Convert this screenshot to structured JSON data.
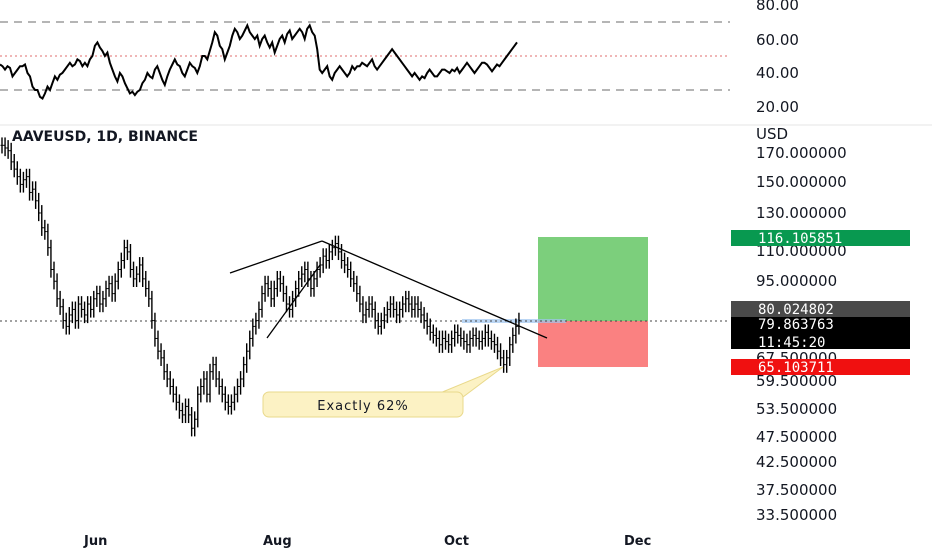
{
  "chart_data": [
    {
      "type": "line",
      "name": "rsi",
      "ylim": [
        20,
        80
      ],
      "y_ticks": [
        "80.00",
        "60.00",
        "40.00",
        "20.00"
      ],
      "band_levels": [
        30,
        50,
        70
      ],
      "values": [
        45,
        44,
        42,
        44,
        43,
        38,
        40,
        42,
        44,
        44,
        45,
        40,
        38,
        32,
        30,
        30,
        26,
        25,
        28,
        32,
        30,
        34,
        38,
        36,
        39,
        40,
        42,
        44,
        46,
        44,
        45,
        48,
        47,
        44,
        46,
        44,
        48,
        50,
        56,
        58,
        55,
        53,
        50,
        52,
        46,
        42,
        38,
        35,
        40,
        38,
        34,
        31,
        28,
        29,
        27,
        29,
        30,
        34,
        36,
        40,
        38,
        37,
        42,
        44,
        40,
        36,
        33,
        38,
        42,
        45,
        48,
        45,
        44,
        40,
        38,
        42,
        46,
        44,
        43,
        40,
        44,
        50,
        50,
        48,
        53,
        58,
        64,
        62,
        56,
        54,
        48,
        52,
        56,
        62,
        66,
        64,
        60,
        62,
        65,
        68,
        64,
        62,
        60,
        62,
        56,
        60,
        62,
        58,
        55,
        58,
        52,
        56,
        60,
        62,
        58,
        63,
        65,
        60,
        62,
        64,
        66,
        64,
        60,
        66,
        68,
        64,
        62,
        54,
        42,
        40,
        42,
        44,
        38,
        36,
        40,
        42,
        44,
        42,
        40,
        38,
        40,
        44,
        42,
        44,
        44,
        46,
        45,
        44,
        46,
        48,
        44,
        42,
        44,
        46,
        48,
        50,
        52,
        54,
        52,
        50,
        48,
        46,
        44,
        42,
        40,
        38,
        40,
        38,
        36,
        38,
        37,
        40,
        42,
        40,
        38,
        38,
        40,
        42,
        42,
        41,
        40,
        42,
        41,
        43,
        40,
        42,
        44,
        46,
        44,
        42,
        40,
        42,
        44,
        46,
        46,
        45,
        43,
        41,
        43,
        45,
        44,
        46,
        48,
        50,
        52,
        54,
        56,
        58
      ]
    },
    {
      "type": "bar",
      "name": "price",
      "title": "AAVEUSD, 1D, BINANCE",
      "unit": "USD",
      "y_ticks": [
        170,
        150,
        130,
        110,
        95,
        67.5,
        59.5,
        53.5,
        47.5,
        42.5,
        37.5,
        33.5
      ],
      "y_tick_labels": [
        "170.000000",
        "150.000000",
        "130.000000",
        "110.000000",
        "95.000000",
        "67.500000",
        "59.500000",
        "53.500000",
        "47.500000",
        "42.500000",
        "37.500000",
        "33.500000"
      ],
      "x_labels": [
        "Jun",
        "Aug",
        "Oct",
        "Dec"
      ],
      "close": [
        172,
        170,
        168,
        160,
        155,
        150,
        145,
        148,
        150,
        140,
        142,
        135,
        128,
        120,
        118,
        110,
        100,
        95,
        88,
        85,
        80,
        78,
        82,
        84,
        80,
        86,
        84,
        82,
        86,
        84,
        88,
        90,
        86,
        88,
        92,
        94,
        90,
        95,
        100,
        104,
        110,
        108,
        100,
        96,
        98,
        102,
        96,
        92,
        88,
        80,
        74,
        70,
        68,
        64,
        62,
        60,
        58,
        56,
        54,
        53,
        55,
        53,
        50,
        52,
        58,
        60,
        62,
        58,
        64,
        66,
        62,
        60,
        58,
        56,
        55,
        56,
        58,
        60,
        62,
        66,
        70,
        74,
        78,
        80,
        84,
        90,
        94,
        92,
        88,
        92,
        96,
        94,
        90,
        86,
        84,
        88,
        92,
        96,
        98,
        100,
        96,
        92,
        96,
        100,
        102,
        106,
        104,
        108,
        110,
        112,
        108,
        104,
        102,
        100,
        96,
        94,
        90,
        86,
        82,
        84,
        86,
        84,
        80,
        78,
        80,
        82,
        84,
        86,
        84,
        82,
        84,
        86,
        88,
        86,
        84,
        86,
        84,
        82,
        80,
        78,
        76,
        75,
        74,
        72,
        74,
        73,
        72,
        74,
        76,
        75,
        74,
        73,
        72,
        74,
        75,
        74,
        73,
        74,
        76,
        74,
        73,
        72,
        70,
        68,
        66,
        68,
        72,
        75,
        78,
        80
      ],
      "annotation": "Exactly 62%",
      "last_price": "79.863763",
      "countdown": "11:45:20",
      "target_label": "116.105851",
      "entry_label": "80.024802",
      "stop_label": "65.103711",
      "target_value": 116.105851,
      "entry_value": 80.024802,
      "stop_value": 65.103711,
      "colors": {
        "profit_zone": "#7ccf7c",
        "loss_zone": "#fa8181",
        "target_tag": "#089950",
        "entry_tag": "#4a4a4a",
        "price_tag": "#000000",
        "stop_tag": "#f01010",
        "annotation_bg": "#fcf2c4"
      }
    }
  ]
}
